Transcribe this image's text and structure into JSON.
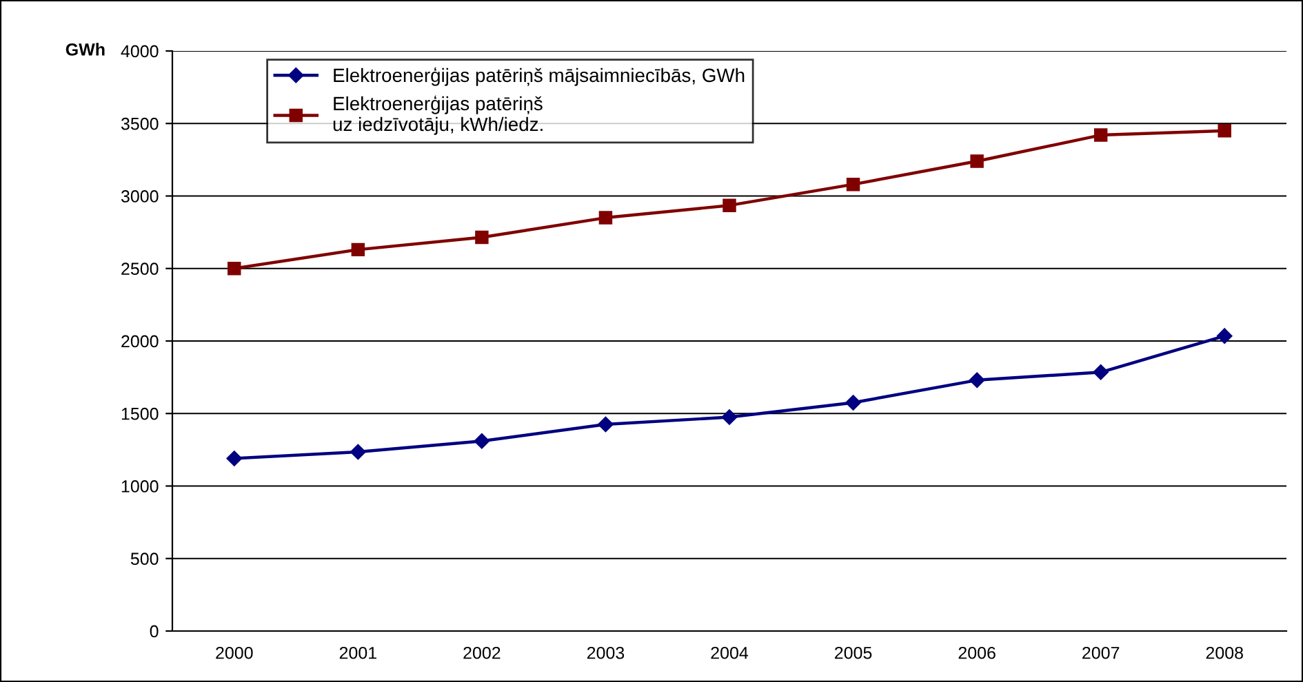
{
  "chart_data": {
    "type": "line",
    "ylabel": "GWh",
    "categories": [
      "2000",
      "2001",
      "2002",
      "2003",
      "2004",
      "2005",
      "2006",
      "2007",
      "2008"
    ],
    "series": [
      {
        "name": "Elektroenerģijas patēriņš mājsaimniecībās, GWh",
        "color": "#000080",
        "marker": "diamond",
        "values": [
          1190,
          1235,
          1310,
          1425,
          1475,
          1575,
          1730,
          1785,
          2035
        ]
      },
      {
        "name": "Elektroenerģijas patēriņš uz iedzīvotāju, kWh/iedz.",
        "color": "#800000",
        "marker": "square",
        "values": [
          2500,
          2630,
          2715,
          2850,
          2935,
          3080,
          3240,
          3420,
          3450
        ]
      }
    ],
    "ylim": [
      0,
      4000
    ],
    "yticks": [
      0,
      500,
      1000,
      1500,
      2000,
      2500,
      3000,
      3500,
      4000
    ],
    "grid": "y",
    "legend": "top left",
    "line_style": "solid"
  }
}
